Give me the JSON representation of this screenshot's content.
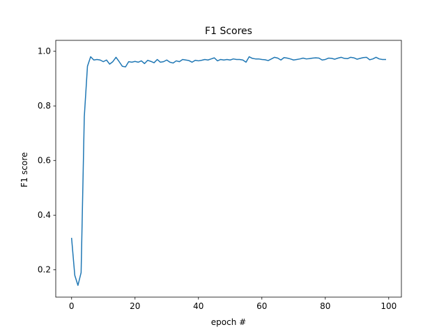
{
  "chart_data": {
    "type": "line",
    "title": "F1 Scores",
    "xlabel": "epoch #",
    "ylabel": "F1 score",
    "xlim": [
      -5,
      104
    ],
    "ylim": [
      0.1,
      1.04
    ],
    "xticks": [
      0,
      20,
      40,
      60,
      80,
      100
    ],
    "yticks": [
      0.2,
      0.4,
      0.6,
      0.8,
      1.0
    ],
    "grid": false,
    "legend": "none",
    "series": [
      {
        "color": "#1f77b4",
        "x": [
          0,
          1,
          2,
          3,
          4,
          5,
          6,
          7,
          8,
          9,
          10,
          11,
          12,
          13,
          14,
          15,
          16,
          17,
          18,
          19,
          20,
          21,
          22,
          23,
          24,
          25,
          26,
          27,
          28,
          29,
          30,
          31,
          32,
          33,
          34,
          35,
          36,
          37,
          38,
          39,
          40,
          41,
          42,
          43,
          44,
          45,
          46,
          47,
          48,
          49,
          50,
          51,
          52,
          53,
          54,
          55,
          56,
          57,
          58,
          59,
          60,
          61,
          62,
          63,
          64,
          65,
          66,
          67,
          68,
          69,
          70,
          71,
          72,
          73,
          74,
          75,
          76,
          77,
          78,
          79,
          80,
          81,
          82,
          83,
          84,
          85,
          86,
          87,
          88,
          89,
          90,
          91,
          92,
          93,
          94,
          95,
          96,
          97,
          98,
          99
        ],
        "y": [
          0.315,
          0.18,
          0.143,
          0.19,
          0.76,
          0.945,
          0.98,
          0.968,
          0.97,
          0.968,
          0.962,
          0.968,
          0.953,
          0.962,
          0.978,
          0.962,
          0.945,
          0.943,
          0.962,
          0.96,
          0.963,
          0.96,
          0.965,
          0.955,
          0.967,
          0.963,
          0.958,
          0.97,
          0.96,
          0.962,
          0.968,
          0.96,
          0.957,
          0.965,
          0.962,
          0.97,
          0.968,
          0.966,
          0.96,
          0.967,
          0.965,
          0.967,
          0.97,
          0.968,
          0.972,
          0.976,
          0.965,
          0.97,
          0.968,
          0.97,
          0.968,
          0.972,
          0.97,
          0.97,
          0.968,
          0.96,
          0.98,
          0.974,
          0.972,
          0.972,
          0.97,
          0.969,
          0.966,
          0.972,
          0.978,
          0.975,
          0.968,
          0.977,
          0.975,
          0.972,
          0.968,
          0.97,
          0.972,
          0.975,
          0.972,
          0.973,
          0.975,
          0.976,
          0.975,
          0.968,
          0.97,
          0.975,
          0.974,
          0.971,
          0.975,
          0.978,
          0.974,
          0.973,
          0.978,
          0.976,
          0.971,
          0.974,
          0.977,
          0.978,
          0.969,
          0.972,
          0.978,
          0.972,
          0.97,
          0.97
        ]
      }
    ]
  }
}
